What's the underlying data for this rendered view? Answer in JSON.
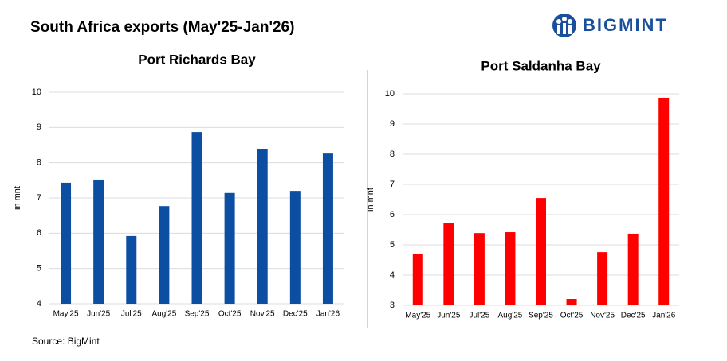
{
  "title": "South Africa exports (May'25-Jan'26)",
  "logo": "BIGMINT",
  "source": "Source:  BigMint",
  "chart_data": [
    {
      "type": "bar",
      "title": "Port Richards Bay",
      "y_label": "in mnt",
      "categories": [
        "May'25",
        "Jun'25",
        "Jul'25",
        "Aug'25",
        "Sep'25",
        "Oct'25",
        "Nov'25",
        "Dec'25",
        "Jan'26"
      ],
      "values": [
        7.43,
        7.52,
        5.92,
        6.77,
        8.87,
        7.14,
        8.38,
        7.2,
        8.26
      ],
      "color": "#0b4ea2",
      "ylim": [
        4,
        10
      ],
      "yticks": [
        4,
        5,
        6,
        7,
        8,
        9,
        10
      ],
      "grid": true
    },
    {
      "type": "bar",
      "title": "Port Saldanha Bay",
      "y_label": "in mnt",
      "categories": [
        "May'25",
        "Jun'25",
        "Jul'25",
        "Aug'25",
        "Sep'25",
        "Oct'25",
        "Nov'25",
        "Dec'25",
        "Jan'26"
      ],
      "values": [
        4.71,
        5.71,
        5.39,
        5.42,
        6.55,
        3.21,
        4.76,
        5.37,
        9.87
      ],
      "color": "#ff0000",
      "ylim": [
        3,
        10
      ],
      "yticks": [
        3,
        4,
        5,
        6,
        7,
        8,
        9,
        10
      ],
      "grid": true
    }
  ]
}
